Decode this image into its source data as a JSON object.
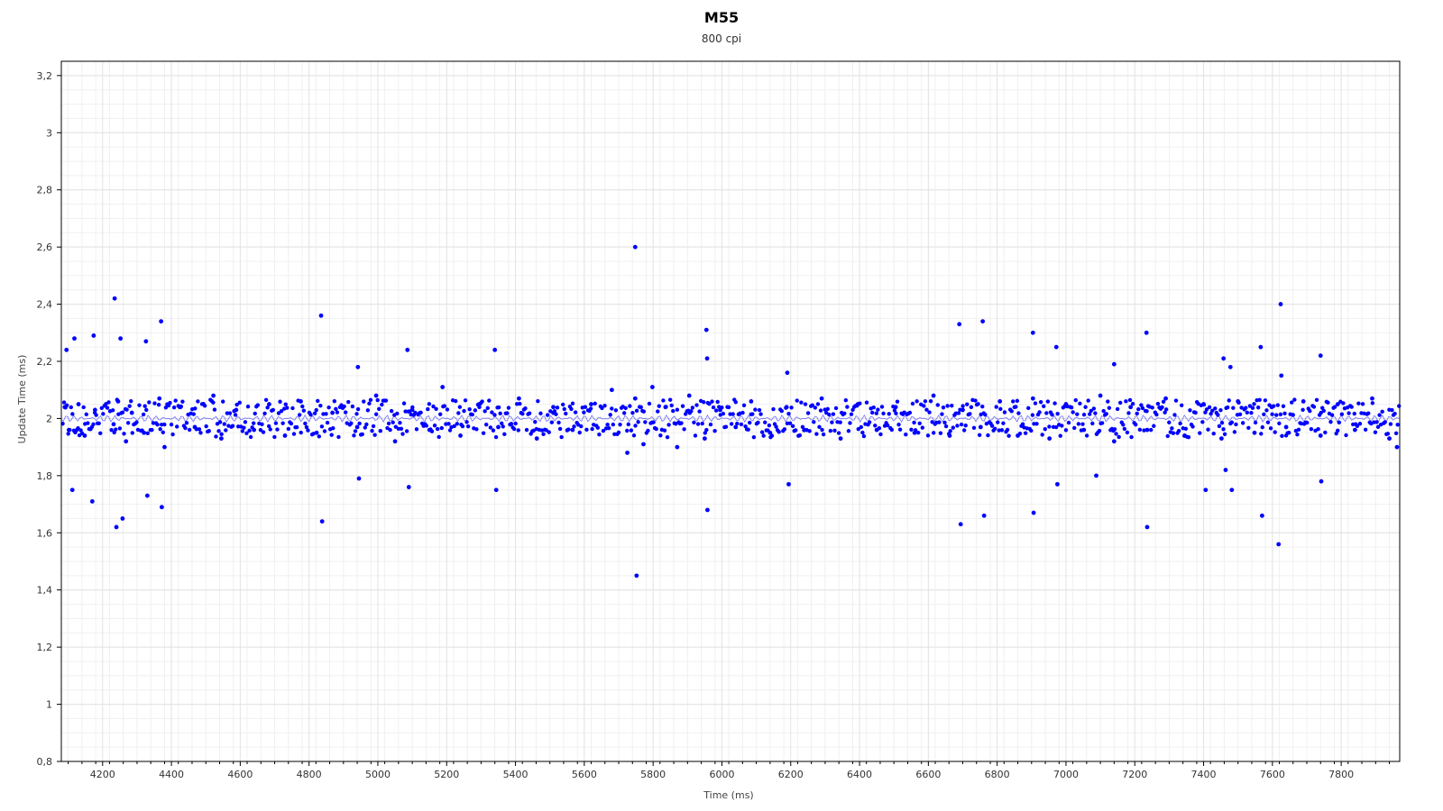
{
  "chart_data": {
    "type": "scatter",
    "title": "M55",
    "subtitle": "800 cpi",
    "xlabel": "Time (ms)",
    "ylabel": "Update Time (ms)",
    "xlim": [
      4080,
      7970
    ],
    "ylim": [
      0.8,
      3.25
    ],
    "xticks": [
      "4200",
      "4400",
      "4600",
      "4800",
      "5000",
      "5200",
      "5400",
      "5600",
      "5800",
      "6000",
      "6200",
      "6400",
      "6600",
      "6800",
      "7000",
      "7200",
      "7400",
      "7600",
      "7800"
    ],
    "yticks": [
      "0,8",
      "1",
      "1,2",
      "1,4",
      "1,6",
      "1,8",
      "2",
      "2,2",
      "2,4",
      "2,6",
      "2,8",
      "3",
      "3,2"
    ],
    "grid": true,
    "point_color": "#0000ff",
    "line_color": "#3333ff",
    "baseline_value": 2.0,
    "series": [
      {
        "x": [
          4090,
          4102,
          4130,
          4148,
          4178,
          4232,
          4245,
          4268,
          4285,
          4320,
          4365,
          4380,
          4426,
          4468,
          4522,
          4545,
          4588,
          4640,
          4684,
          4730,
          4776,
          4822,
          4868,
          4940,
          4995,
          5050,
          5100,
          5150,
          5188,
          5240,
          5295,
          5350,
          5410,
          5462,
          5510,
          5566,
          5620,
          5680,
          5725,
          5748,
          5772,
          5798,
          5836,
          5870,
          5905,
          5950,
          5995,
          6040,
          6085,
          6140,
          6188,
          6240,
          6290,
          6345,
          6395,
          6450,
          6505,
          6560,
          6615,
          6662,
          6700,
          6752,
          6808,
          6860,
          6904,
          6952,
          7000,
          7052,
          7100,
          7140,
          7188,
          7236,
          7290,
          7345,
          7400,
          7452,
          7500,
          7548,
          7598,
          7640,
          7690,
          7740,
          7790,
          7840,
          7890,
          7940,
          7962
        ],
        "y": [
          2.04,
          1.96,
          2.05,
          1.94,
          2.03,
          1.98,
          2.06,
          1.92,
          2.02,
          1.95,
          2.07,
          1.9,
          2.04,
          1.97,
          2.08,
          1.93,
          2.03,
          1.96,
          2.05,
          1.94,
          2.06,
          1.95,
          2.02,
          1.97,
          2.08,
          1.92,
          2.03,
          1.96,
          2.11,
          1.94,
          2.05,
          1.97,
          2.07,
          1.93,
          2.04,
          1.96,
          2.05,
          2.1,
          1.88,
          2.07,
          1.91,
          2.11,
          2.04,
          1.9,
          2.08,
          1.93,
          2.03,
          1.97,
          2.06,
          1.95,
          2.04,
          1.96,
          2.07,
          1.93,
          2.05,
          1.96,
          2.04,
          1.95,
          2.08,
          1.94,
          2.03,
          1.97,
          2.06,
          1.94,
          2.07,
          1.93,
          2.05,
          1.96,
          2.08,
          1.92,
          2.04,
          1.96,
          2.07,
          1.94,
          2.05,
          1.93,
          2.06,
          1.95,
          2.04,
          1.97,
          2.06,
          1.94,
          2.05,
          1.96,
          2.07,
          1.93,
          1.9
        ]
      },
      {
        "name": "",
        "x": [
          4095,
          4112,
          4118,
          4170,
          4174,
          4235,
          4240,
          4252,
          4258,
          4326,
          4330,
          4370,
          4372,
          4835,
          4838,
          4942,
          4945,
          5086,
          5090,
          5340,
          5344,
          5748,
          5752,
          5955,
          5957,
          5958,
          6190,
          6194,
          6690,
          6694,
          6758,
          6762,
          6904,
          6906,
          6972,
          6975,
          7088,
          7140,
          7234,
          7236,
          7406,
          7458,
          7464,
          7478,
          7482,
          7566,
          7570,
          7618,
          7624,
          7626,
          7740,
          7742
        ],
        "y": [
          2.24,
          1.75,
          2.28,
          1.71,
          2.29,
          2.42,
          1.62,
          2.28,
          1.65,
          2.27,
          1.73,
          2.34,
          1.69,
          2.36,
          1.64,
          2.18,
          1.79,
          2.24,
          1.76,
          2.24,
          1.75,
          2.6,
          1.45,
          2.31,
          2.21,
          1.68,
          2.16,
          1.77,
          2.33,
          1.63,
          2.34,
          1.66,
          2.3,
          1.67,
          2.25,
          1.77,
          1.8,
          2.19,
          2.3,
          1.62,
          1.75,
          2.21,
          1.82,
          2.18,
          1.75,
          2.25,
          1.66,
          1.56,
          2.4,
          2.15,
          2.22,
          1.78
        ]
      }
    ]
  }
}
